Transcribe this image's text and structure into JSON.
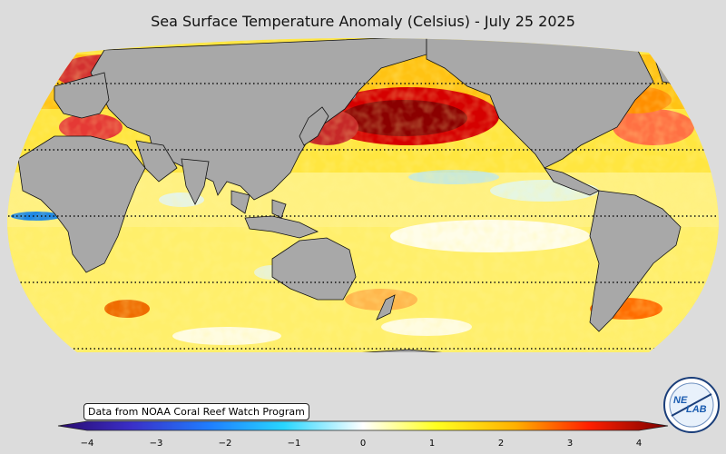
{
  "title": "Sea Surface Temperature Anomaly (Celsius) - July 25 2025",
  "credit": "Data from NOAA Coral Reef Watch Program",
  "colorbar": {
    "min": -4,
    "max": 4,
    "tick_labels": [
      "−4",
      "−3",
      "−2",
      "−1",
      "0",
      "1",
      "2",
      "3",
      "4"
    ],
    "colors": [
      "#2a0a6e",
      "#3a2fc8",
      "#1f7fff",
      "#28d6ff",
      "#ffffff",
      "#ffff20",
      "#ffb000",
      "#ff2000",
      "#7a0000"
    ]
  },
  "logo": {
    "text_a": "NE",
    "text_b": "LAB"
  },
  "map": {
    "projection": "Robinson (Pacific-centered)",
    "land_color": "#a8a8a8",
    "background_color": "#dcdcdc",
    "gridline_style": "dotted"
  }
}
